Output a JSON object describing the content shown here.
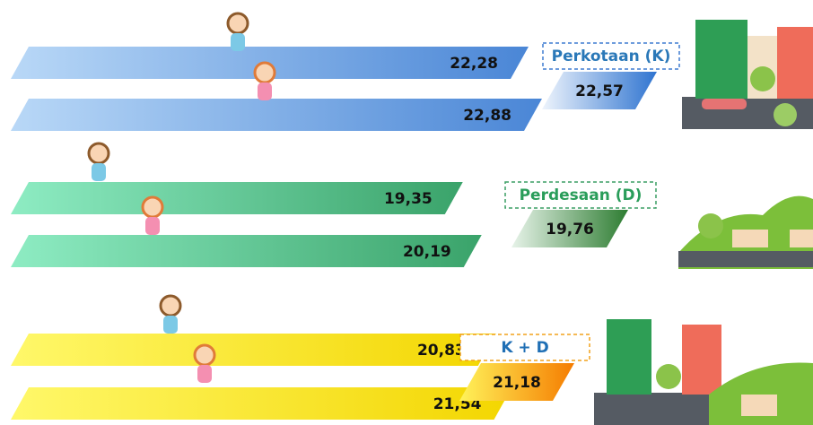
{
  "chart_data": {
    "type": "bar",
    "series": [
      {
        "name": "Perkotaan (K)",
        "color": "#3f7bd0",
        "values": [
          22.28,
          22.88
        ],
        "value_labels": [
          "22,28",
          "22,88"
        ],
        "total": 22.57,
        "total_label": "22,57"
      },
      {
        "name": "Perdesaan (D)",
        "color": "#3a9e63",
        "values": [
          19.35,
          20.19
        ],
        "value_labels": [
          "19,35",
          "20,19"
        ],
        "total": 19.76,
        "total_label": "19,76"
      },
      {
        "name": "K + D",
        "color": "#f2a21c",
        "values": [
          20.83,
          21.54
        ],
        "value_labels": [
          "20,83",
          "21,54"
        ],
        "total": 21.18,
        "total_label": "21,18"
      }
    ]
  }
}
